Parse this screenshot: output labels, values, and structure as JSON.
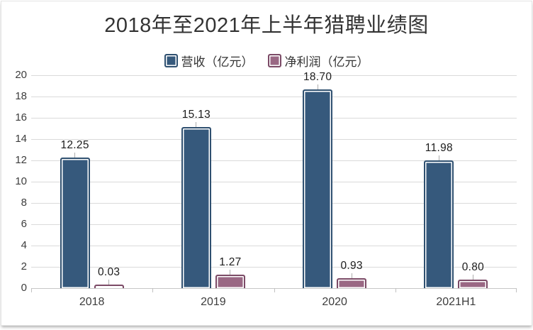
{
  "chart_data": {
    "type": "bar",
    "title": "2018年至2021年上半年猎聘业绩图",
    "categories": [
      "2018",
      "2019",
      "2020",
      "2021H1"
    ],
    "series": [
      {
        "name": "营收（亿元）",
        "values": [
          12.25,
          15.13,
          18.7,
          11.98
        ],
        "labels": [
          "12.25",
          "15.13",
          "18.70",
          "11.98"
        ],
        "fill": "#36597C",
        "border": "#2F5070"
      },
      {
        "name": "净利润（亿元）",
        "values": [
          0.03,
          1.27,
          0.93,
          0.8
        ],
        "labels": [
          "0.03",
          "1.27",
          "0.93",
          "0.80"
        ],
        "fill": "#9A6884",
        "border": "#7B4A66"
      }
    ],
    "xlabel": "",
    "ylabel": "",
    "ylim": [
      0,
      20
    ],
    "yticks": [
      0,
      2,
      4,
      6,
      8,
      10,
      12,
      14,
      16,
      18,
      20
    ],
    "grid": "horizontal",
    "legend_position": "top",
    "colors": {
      "gridline": "#dadada",
      "axis_line": "#c6c6c6",
      "text": "#3d3d3d",
      "value_label": "#1c1c1c"
    }
  }
}
